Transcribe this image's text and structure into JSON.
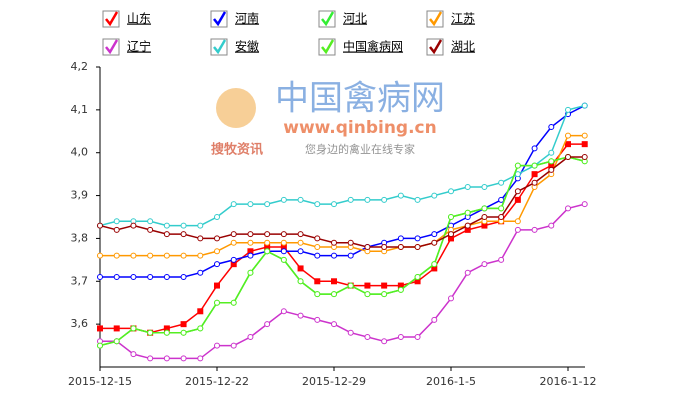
{
  "chart_data": {
    "type": "line",
    "watermark": {
      "brand": "中国禽病网",
      "url": "www.qinbing.cn",
      "logo_text": "搜牧资讯",
      "slogan": "您身边的禽业在线专家"
    },
    "categories": [
      "2015-12-15",
      null,
      null,
      null,
      null,
      null,
      null,
      "2015-12-22",
      null,
      null,
      null,
      null,
      null,
      null,
      "2015-12-29",
      null,
      null,
      null,
      null,
      null,
      null,
      "2016-1-5",
      null,
      null,
      null,
      null,
      null,
      null,
      "2016-1-12",
      null
    ],
    "ylim": [
      3.5,
      4.2
    ],
    "yticks": [
      {
        "value": 3.6,
        "label": "3,6"
      },
      {
        "value": 3.7,
        "label": "3,7"
      },
      {
        "value": 3.8,
        "label": "3,8"
      },
      {
        "value": 3.9,
        "label": "3,9"
      },
      {
        "value": 4.0,
        "label": "4,0"
      },
      {
        "value": 4.1,
        "label": "4,1"
      },
      {
        "value": 4.2,
        "label": "4,2"
      }
    ],
    "grid": false,
    "legend": "top",
    "series": [
      {
        "name": "山东",
        "color": "#ff0000",
        "marker": "square",
        "values": [
          3.59,
          3.59,
          3.59,
          3.58,
          3.59,
          3.6,
          3.63,
          3.69,
          3.74,
          3.77,
          3.78,
          3.78,
          3.73,
          3.7,
          3.7,
          3.69,
          3.69,
          3.69,
          3.69,
          3.7,
          3.73,
          3.8,
          3.82,
          3.83,
          3.84,
          3.89,
          3.95,
          3.97,
          4.02,
          4.02
        ]
      },
      {
        "name": "河南",
        "color": "#0000ff",
        "marker": "circle",
        "values": [
          3.71,
          3.71,
          3.71,
          3.71,
          3.71,
          3.71,
          3.72,
          3.74,
          3.75,
          3.76,
          3.77,
          3.77,
          3.77,
          3.76,
          3.76,
          3.76,
          3.78,
          3.79,
          3.8,
          3.8,
          3.81,
          3.83,
          3.85,
          3.87,
          3.89,
          3.94,
          4.01,
          4.06,
          4.09,
          4.11
        ]
      },
      {
        "name": "河北",
        "color": "#33ee33",
        "marker": "circle",
        "values": [
          3.55,
          3.56,
          3.59,
          3.58,
          3.58,
          3.58,
          3.59,
          3.65,
          3.65,
          3.72,
          3.77,
          3.75,
          3.7,
          3.67,
          3.67,
          3.69,
          3.67,
          3.67,
          3.68,
          3.71,
          3.74,
          3.85,
          3.86,
          3.87,
          3.87,
          3.97,
          3.97,
          3.98,
          3.99,
          3.98
        ]
      },
      {
        "name": "江苏",
        "color": "#ff9900",
        "marker": "circle",
        "values": [
          3.76,
          3.76,
          3.76,
          3.76,
          3.76,
          3.76,
          3.76,
          3.77,
          3.79,
          3.79,
          3.79,
          3.79,
          3.79,
          3.78,
          3.78,
          3.78,
          3.77,
          3.77,
          3.78,
          3.78,
          3.79,
          3.82,
          3.83,
          3.84,
          3.84,
          3.84,
          3.92,
          3.95,
          4.04,
          4.04
        ]
      },
      {
        "name": "辽宁",
        "color": "#cc33cc",
        "marker": "circle",
        "values": [
          3.56,
          3.56,
          3.53,
          3.52,
          3.52,
          3.52,
          3.52,
          3.55,
          3.55,
          3.57,
          3.6,
          3.63,
          3.62,
          3.61,
          3.6,
          3.58,
          3.57,
          3.56,
          3.57,
          3.57,
          3.61,
          3.66,
          3.72,
          3.74,
          3.75,
          3.82,
          3.82,
          3.83,
          3.87,
          3.88
        ]
      },
      {
        "name": "安徽",
        "color": "#33cccc",
        "marker": "circle",
        "values": [
          3.83,
          3.84,
          3.84,
          3.84,
          3.83,
          3.83,
          3.83,
          3.85,
          3.88,
          3.88,
          3.88,
          3.89,
          3.89,
          3.88,
          3.88,
          3.89,
          3.89,
          3.89,
          3.9,
          3.89,
          3.9,
          3.91,
          3.92,
          3.92,
          3.93,
          3.95,
          3.97,
          4.0,
          4.1,
          4.11
        ]
      },
      {
        "name": "中国禽病网",
        "color": "#55ee22",
        "marker": "circle",
        "values": [
          3.55,
          3.56,
          3.59,
          3.58,
          3.58,
          3.58,
          3.59,
          3.65,
          3.65,
          3.72,
          3.77,
          3.75,
          3.7,
          3.67,
          3.67,
          3.69,
          3.67,
          3.67,
          3.68,
          3.71,
          3.74,
          3.85,
          3.86,
          3.87,
          3.87,
          3.97,
          3.97,
          3.98,
          3.99,
          3.98
        ]
      },
      {
        "name": "湖北",
        "color": "#990000",
        "marker": "circle",
        "values": [
          3.83,
          3.82,
          3.83,
          3.82,
          3.81,
          3.81,
          3.8,
          3.8,
          3.81,
          3.81,
          3.81,
          3.81,
          3.81,
          3.8,
          3.79,
          3.79,
          3.78,
          3.78,
          3.78,
          3.78,
          3.79,
          3.81,
          3.83,
          3.85,
          3.85,
          3.91,
          3.93,
          3.96,
          3.99,
          3.99
        ]
      }
    ]
  }
}
